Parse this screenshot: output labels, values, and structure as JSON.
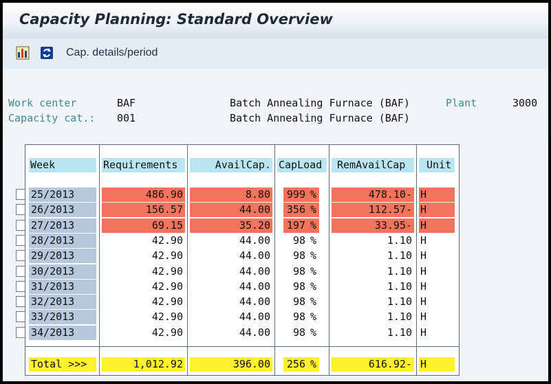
{
  "window": {
    "title": "Capacity Planning: Standard Overview"
  },
  "toolbar": {
    "icons": [
      "chart-icon",
      "refresh-icon"
    ],
    "button_label": "Cap. details/period"
  },
  "header": {
    "work_center_label": "Work center",
    "work_center_value": "BAF",
    "work_center_desc": "Batch Annealing Furnace (BAF)",
    "plant_label": "Plant",
    "plant_value": "3000",
    "capacity_cat_label": "Capacity cat.:",
    "capacity_cat_value": "001",
    "capacity_cat_desc": "Batch Annealing Furnace (BAF)"
  },
  "table": {
    "columns": [
      "Week",
      "Requirements",
      "AvailCap.",
      "CapLoad",
      "RemAvailCap",
      "Unit"
    ],
    "rows": [
      {
        "week": "25/2013",
        "req": "486.90",
        "avail": "8.80",
        "load": "999",
        "pct": "%",
        "rem": "478.10-",
        "unit": "H",
        "overload": true
      },
      {
        "week": "26/2013",
        "req": "156.57",
        "avail": "44.00",
        "load": "356",
        "pct": "%",
        "rem": "112.57-",
        "unit": "H",
        "overload": true
      },
      {
        "week": "27/2013",
        "req": "69.15",
        "avail": "35.20",
        "load": "197",
        "pct": "%",
        "rem": "33.95-",
        "unit": "H",
        "overload": true
      },
      {
        "week": "28/2013",
        "req": "42.90",
        "avail": "44.00",
        "load": "98",
        "pct": "%",
        "rem": "1.10",
        "unit": "H",
        "overload": false
      },
      {
        "week": "29/2013",
        "req": "42.90",
        "avail": "44.00",
        "load": "98",
        "pct": "%",
        "rem": "1.10",
        "unit": "H",
        "overload": false
      },
      {
        "week": "30/2013",
        "req": "42.90",
        "avail": "44.00",
        "load": "98",
        "pct": "%",
        "rem": "1.10",
        "unit": "H",
        "overload": false
      },
      {
        "week": "31/2013",
        "req": "42.90",
        "avail": "44.00",
        "load": "98",
        "pct": "%",
        "rem": "1.10",
        "unit": "H",
        "overload": false
      },
      {
        "week": "32/2013",
        "req": "42.90",
        "avail": "44.00",
        "load": "98",
        "pct": "%",
        "rem": "1.10",
        "unit": "H",
        "overload": false
      },
      {
        "week": "33/2013",
        "req": "42.90",
        "avail": "44.00",
        "load": "98",
        "pct": "%",
        "rem": "1.10",
        "unit": "H",
        "overload": false
      },
      {
        "week": "34/2013",
        "req": "42.90",
        "avail": "44.00",
        "load": "98",
        "pct": "%",
        "rem": "1.10",
        "unit": "H",
        "overload": false
      }
    ],
    "total": {
      "label": "Total  >>>",
      "req": "1,012.92",
      "avail": "396.00",
      "load": "256",
      "pct": "%",
      "rem": "616.92-",
      "unit": "H"
    }
  },
  "colors": {
    "overload": "#f4735c",
    "total": "#fdf12c",
    "header": "#b9e6f1",
    "week": "#b8c8dc",
    "label": "#3b8a93"
  }
}
